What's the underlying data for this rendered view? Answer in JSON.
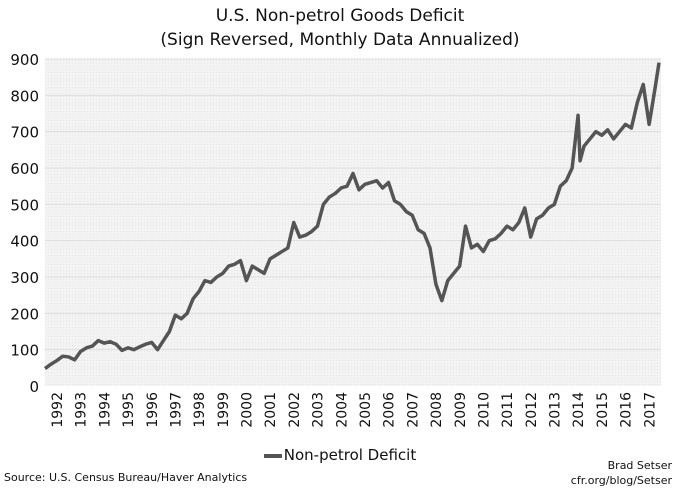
{
  "chart_data": {
    "type": "line",
    "title": "U.S. Non-petrol Goods Deficit",
    "subtitle": "(Sign Reversed, Monthly Data Annualized)",
    "xlabel": "",
    "ylabel": "",
    "ylim": [
      0,
      900
    ],
    "yticks": [
      "0",
      "100",
      "200",
      "300",
      "400",
      "500",
      "600",
      "700",
      "800",
      "900"
    ],
    "xticks": [
      "1992",
      "1993",
      "1994",
      "1995",
      "1996",
      "1997",
      "1998",
      "1999",
      "2000",
      "2001",
      "2002",
      "2003",
      "2004",
      "2005",
      "2006",
      "2007",
      "2008",
      "2009",
      "2010",
      "2011",
      "2012",
      "2013",
      "2014",
      "2015",
      "2016",
      "2017"
    ],
    "grid": true,
    "legend": "bottom",
    "line_color": "#555555",
    "series": [
      {
        "name": "Non-petrol Deficit",
        "x": [
          "1992-01",
          "1992-04",
          "1992-07",
          "1992-10",
          "1993-01",
          "1993-04",
          "1993-07",
          "1993-10",
          "1994-01",
          "1994-04",
          "1994-07",
          "1994-10",
          "1995-01",
          "1995-04",
          "1995-07",
          "1995-10",
          "1996-01",
          "1996-04",
          "1996-07",
          "1996-10",
          "1997-01",
          "1997-04",
          "1997-07",
          "1997-10",
          "1998-01",
          "1998-04",
          "1998-07",
          "1998-10",
          "1999-01",
          "1999-04",
          "1999-07",
          "1999-10",
          "2000-01",
          "2000-04",
          "2000-07",
          "2000-10",
          "2001-01",
          "2001-04",
          "2001-07",
          "2001-10",
          "2002-01",
          "2002-04",
          "2002-07",
          "2002-10",
          "2003-01",
          "2003-04",
          "2003-07",
          "2003-10",
          "2004-01",
          "2004-04",
          "2004-07",
          "2004-10",
          "2005-01",
          "2005-04",
          "2005-07",
          "2005-10",
          "2006-01",
          "2006-04",
          "2006-07",
          "2006-10",
          "2007-01",
          "2007-04",
          "2007-07",
          "2007-10",
          "2008-01",
          "2008-04",
          "2008-07",
          "2008-10",
          "2009-01",
          "2009-04",
          "2009-07",
          "2009-10",
          "2010-01",
          "2010-04",
          "2010-07",
          "2010-10",
          "2011-01",
          "2011-04",
          "2011-07",
          "2011-10",
          "2012-01",
          "2012-04",
          "2012-07",
          "2012-10",
          "2013-01",
          "2013-04",
          "2013-07",
          "2013-10",
          "2014-01",
          "2014-04",
          "2014-07",
          "2014-08",
          "2014-10",
          "2015-01",
          "2015-04",
          "2015-07",
          "2015-10",
          "2016-01",
          "2016-04",
          "2016-07",
          "2016-10",
          "2017-01",
          "2017-04",
          "2017-07",
          "2017-10",
          "2017-12"
        ],
        "values": [
          48,
          60,
          70,
          82,
          80,
          72,
          95,
          105,
          110,
          125,
          118,
          122,
          115,
          98,
          105,
          100,
          108,
          115,
          120,
          100,
          125,
          150,
          195,
          185,
          200,
          240,
          260,
          290,
          285,
          300,
          310,
          330,
          335,
          345,
          290,
          330,
          320,
          310,
          350,
          360,
          370,
          380,
          450,
          410,
          415,
          425,
          440,
          500,
          520,
          530,
          545,
          550,
          585,
          540,
          555,
          560,
          565,
          545,
          560,
          510,
          500,
          480,
          470,
          430,
          420,
          380,
          280,
          235,
          290,
          310,
          330,
          440,
          380,
          390,
          370,
          400,
          405,
          420,
          440,
          430,
          450,
          490,
          410,
          460,
          470,
          490,
          500,
          550,
          565,
          600,
          745,
          620,
          660,
          680,
          700,
          690,
          705,
          680,
          700,
          720,
          710,
          780,
          830,
          720,
          820,
          890
        ]
      }
    ]
  },
  "footer": {
    "source": "Source: U.S. Census Bureau/Haver Analytics",
    "author": "Brad Setser",
    "url": "cfr.org/blog/Setser"
  }
}
